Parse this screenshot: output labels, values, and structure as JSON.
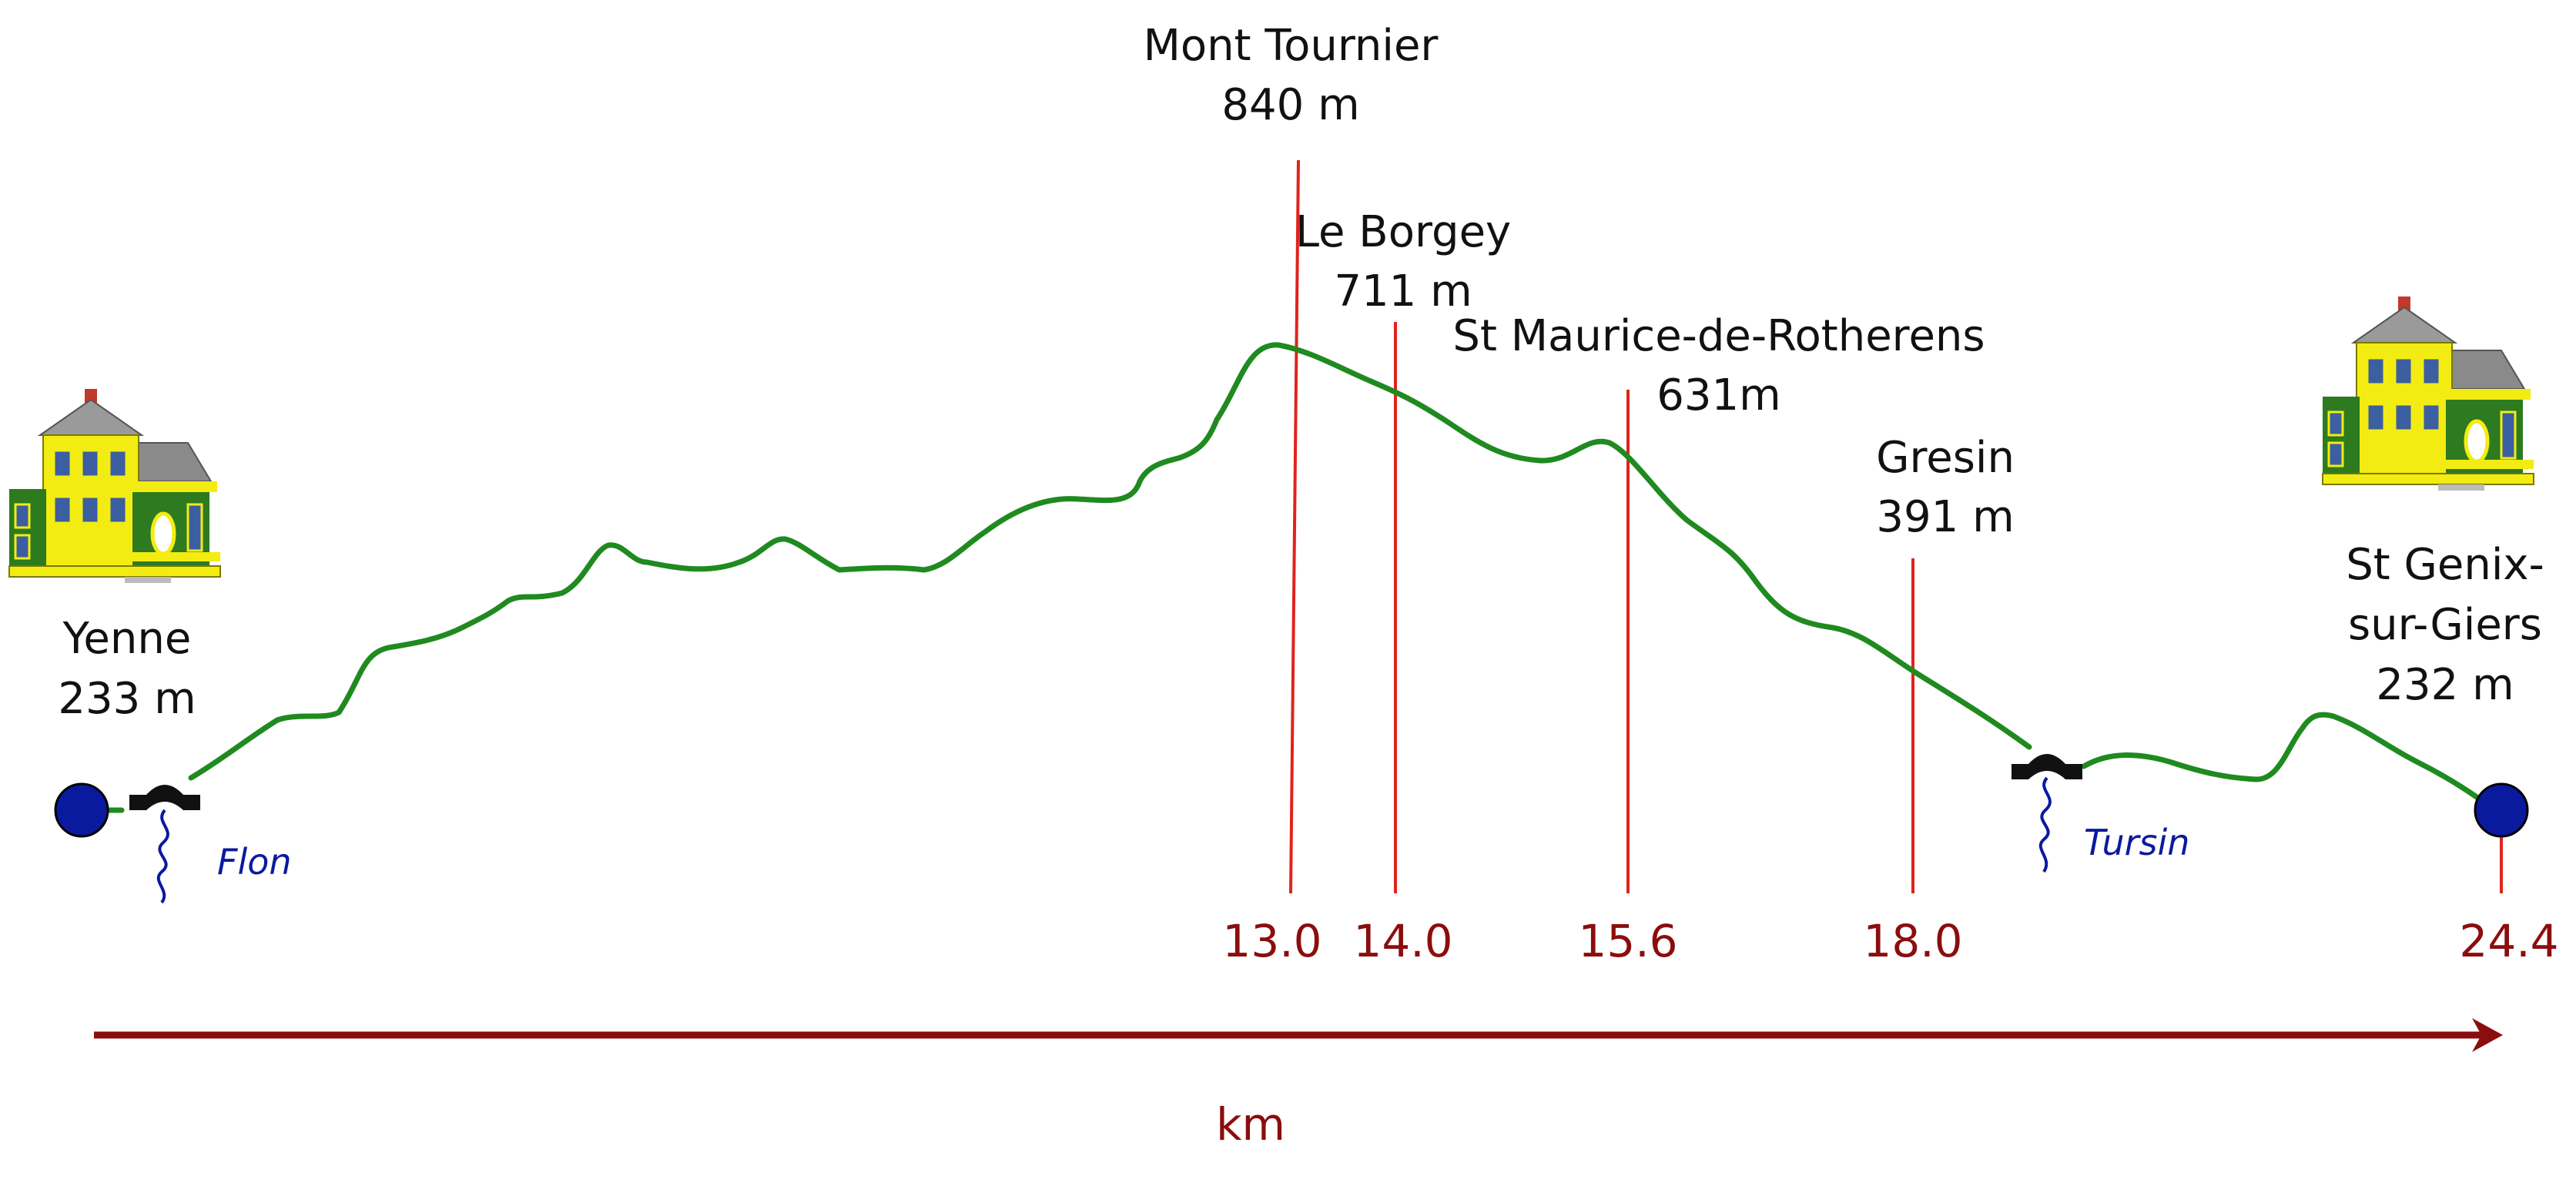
{
  "colors": {
    "profile": "#1f8a1f",
    "marker_line": "#e0231c",
    "axis": "#8b0d0d",
    "km_label": "#8b0d0d",
    "endpoint": "#0a1a9e",
    "river": "#0a1a9e",
    "bridge": "#111111",
    "house_wall": "#f3ec12",
    "house_roof": "#8a8a8a",
    "house_trim": "#2d7a1f"
  },
  "start": {
    "name": "Yenne",
    "altitude": "233 m",
    "icon": "house-icon"
  },
  "end": {
    "name_line1": "St Genix-",
    "name_line2": "sur-Giers",
    "altitude": "232 m",
    "km": "24.4",
    "icon": "house-icon"
  },
  "waypoints": [
    {
      "name": "Mont Tournier",
      "altitude": "840 m",
      "km": "13.0"
    },
    {
      "name": "Le Borgey",
      "altitude": "711 m",
      "km": "14.0"
    },
    {
      "name": "St Maurice-de-Rotherens",
      "altitude": "631m",
      "km": "15.6"
    },
    {
      "name": "Gresin",
      "altitude": "391 m",
      "km": "18.0"
    }
  ],
  "rivers": [
    {
      "name": "Flon",
      "icon": "bridge-icon"
    },
    {
      "name": "Tursin",
      "icon": "bridge-icon"
    }
  ],
  "axis": {
    "unit": "km"
  }
}
